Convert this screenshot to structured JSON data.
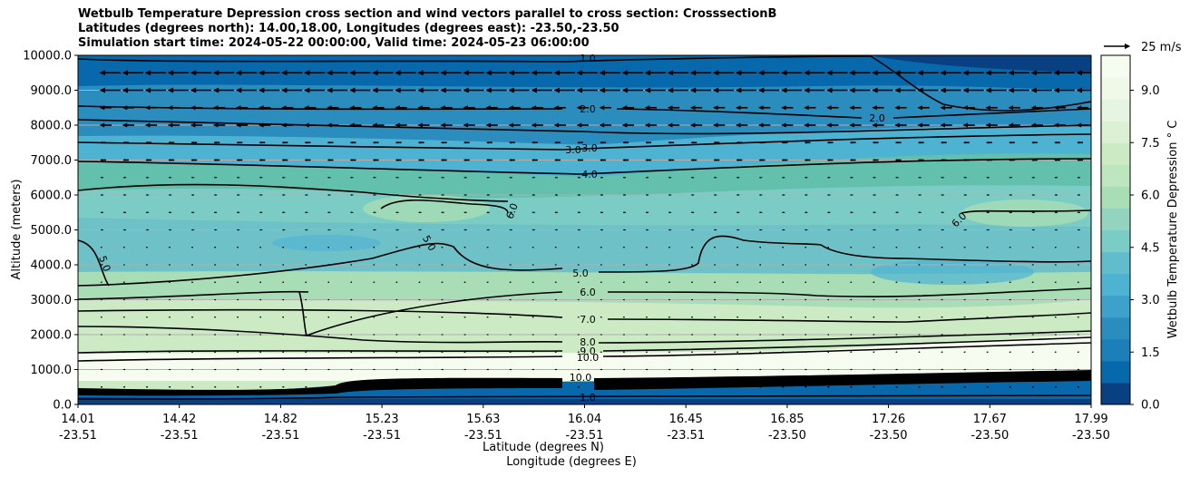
{
  "title_lines": [
    "Wetbulb Temperature Depression cross section and wind vectors parallel to cross section: CrosssectionB",
    "Latitudes (degrees north): 14.00,18.00, Longitudes (degrees east): -23.50,-23.50",
    "Simulation start time: 2024-05-22 00:00:00, Valid time: 2024-05-23 06:00:00"
  ],
  "chart_data": {
    "type": "heatmap",
    "title": "Wetbulb Temperature Depression cross section and wind vectors parallel to cross section: CrosssectionB",
    "xlabel_lat": "Latitude (degrees N)",
    "xlabel_lon": "Longitude (degrees E)",
    "ylabel": "Altitude (meters)",
    "ylim": [
      0,
      10000
    ],
    "y_ticks": [
      "0.0",
      "1000.0",
      "2000.0",
      "3000.0",
      "4000.0",
      "5000.0",
      "6000.0",
      "7000.0",
      "8000.0",
      "9000.0",
      "10000.0"
    ],
    "x_ticks": [
      {
        "lat": "14.01",
        "lon": "-23.51"
      },
      {
        "lat": "14.42",
        "lon": "-23.51"
      },
      {
        "lat": "14.82",
        "lon": "-23.51"
      },
      {
        "lat": "15.23",
        "lon": "-23.51"
      },
      {
        "lat": "15.63",
        "lon": "-23.51"
      },
      {
        "lat": "16.04",
        "lon": "-23.51"
      },
      {
        "lat": "16.45",
        "lon": "-23.51"
      },
      {
        "lat": "16.85",
        "lon": "-23.50"
      },
      {
        "lat": "17.26",
        "lon": "-23.50"
      },
      {
        "lat": "17.67",
        "lon": "-23.50"
      },
      {
        "lat": "17.99",
        "lon": "-23.50"
      }
    ],
    "grid": true,
    "colorbar": {
      "label": "Wetbulb Temperature Depression ° C",
      "range": [
        0,
        10
      ],
      "ticks": [
        "0.0",
        "1.5",
        "3.0",
        "4.5",
        "6.0",
        "7.5",
        "9.0"
      ],
      "colormap": "GnBu_r"
    },
    "wind_reference": "25 m/s",
    "wind_direction": "toward lower latitude (left) aloft",
    "contour_labels": [
      "1.0",
      "2.0",
      "2.0",
      "3.0",
      "3.0",
      "4.0",
      "5.0",
      "5.0",
      "5.0",
      "6.0",
      "6.0",
      "6.0",
      "7.0",
      "8.0",
      "9.0",
      "10.0",
      "10.0",
      "1.0"
    ],
    "profile_example": [
      {
        "altitude": 500,
        "value": 1.0
      },
      {
        "altitude": 1500,
        "value": 9.5
      },
      {
        "altitude": 2500,
        "value": 7.5
      },
      {
        "altitude": 3500,
        "value": 5.5
      },
      {
        "altitude": 4500,
        "value": 4.8
      },
      {
        "altitude": 5500,
        "value": 5.8
      },
      {
        "altitude": 6500,
        "value": 5.5
      },
      {
        "altitude": 7500,
        "value": 3.5
      },
      {
        "altitude": 8500,
        "value": 2.0
      },
      {
        "altitude": 9500,
        "value": 1.2
      }
    ]
  }
}
